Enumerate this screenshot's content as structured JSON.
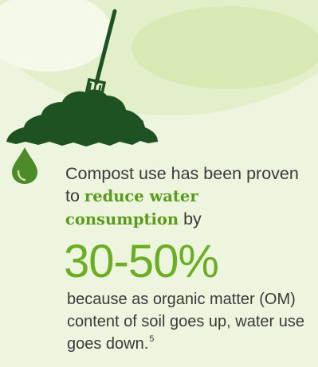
{
  "colors": {
    "background": "#eef5de",
    "highlight": "#5b9a1c",
    "stat": "#6bae23",
    "body_text": "#3a3a3a",
    "compost": "#1f5222",
    "drop": "#4d8a2a"
  },
  "icons": {
    "illustration": "compost-pile-with-pitchfork",
    "bullet": "water-drop-icon"
  },
  "text": {
    "intro_1": "Compost use has been proven to",
    "intro_highlight": "reduce water consumption",
    "intro_2": "by",
    "stat": "30-50%",
    "explanation": "because as organic matter (OM) content of soil goes up, water use goes down.",
    "footnote_ref": "5"
  }
}
